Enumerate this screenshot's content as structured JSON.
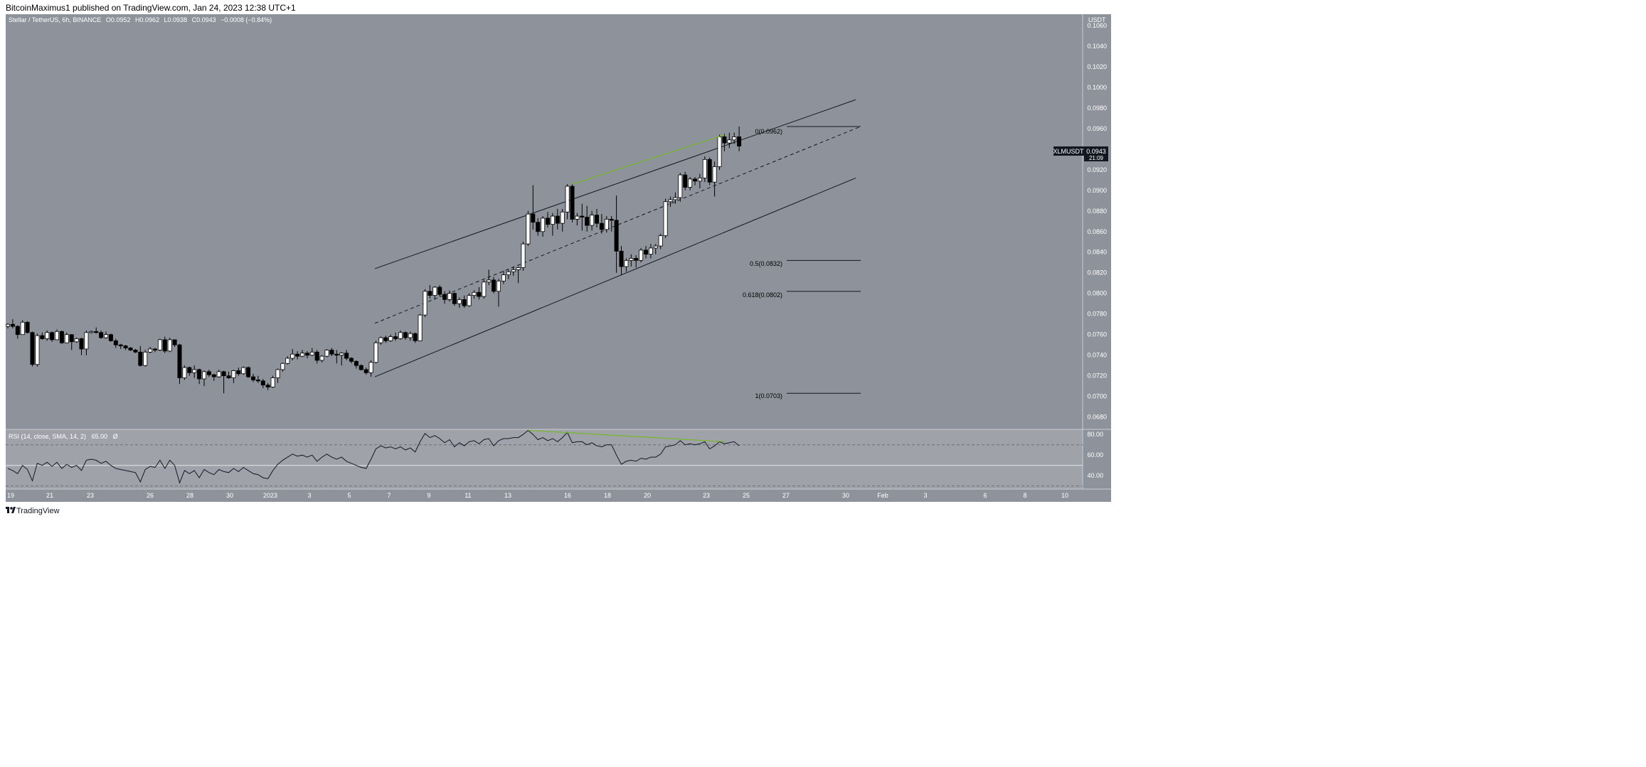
{
  "header": {
    "published": "BitcoinMaximus1 published on TradingView.com, Jan 24, 2023 12:38 UTC+1",
    "symbol_line": "Stellar / TetherUS, 6h, BINANCE",
    "o_label": "O",
    "o_value": "0.0952",
    "h_label": "H",
    "h_value": "0.0962",
    "l_label": "L",
    "l_value": "0.0938",
    "c_label": "C",
    "c_value": "0.0943",
    "change": "−0.0008 (−0.84%)"
  },
  "price_axis": {
    "unit": "USDT",
    "ticks": [
      "0.1060",
      "0.1040",
      "0.1020",
      "0.1000",
      "0.0980",
      "0.0960",
      "0.0940",
      "0.0920",
      "0.0900",
      "0.0880",
      "0.0860",
      "0.0840",
      "0.0820",
      "0.0800",
      "0.0780",
      "0.0760",
      "0.0740",
      "0.0720",
      "0.0700",
      "0.0680"
    ]
  },
  "ticker_badge": {
    "symbol": "XLMUSDT",
    "price": "0.0943",
    "countdown": "21:09"
  },
  "fib_labels": [
    "0(0.0962)",
    "0.5(0.0832)",
    "0.618(0.0802)",
    "1(0.0703)"
  ],
  "rsi": {
    "legend": "RSI (14, close, SMA, 14, 2)",
    "value": "65.00",
    "extra": "Ø",
    "axis_ticks": [
      "80.00",
      "60.00",
      "40.00"
    ]
  },
  "time_axis": {
    "labels": [
      "19",
      "21",
      "23",
      "26",
      "28",
      "30",
      "2023",
      "3",
      "5",
      "7",
      "9",
      "11",
      "13",
      "16",
      "18",
      "20",
      "23",
      "25",
      "27",
      "30",
      "Feb",
      "3",
      "6",
      "8",
      "10"
    ]
  },
  "footer": {
    "brand": "TradingView"
  },
  "colors": {
    "chart_bg": "#8e939b",
    "rsi_bg": "#9fa2a8",
    "bull": "#ffffff",
    "bear": "#000000",
    "divergence": "#76b82a"
  },
  "chart_data": {
    "type": "candlestick",
    "symbol": "XLMUSDT",
    "interval": "6h",
    "price_range": [
      0.0668,
      0.1071
    ],
    "candles": [
      [
        0.0768,
        0.0771,
        0.0766,
        0.077
      ],
      [
        0.077,
        0.0775,
        0.0766,
        0.0768
      ],
      [
        0.0768,
        0.0769,
        0.0756,
        0.076
      ],
      [
        0.076,
        0.0774,
        0.076,
        0.0772
      ],
      [
        0.0772,
        0.0773,
        0.0761,
        0.0762
      ],
      [
        0.0762,
        0.0763,
        0.0729,
        0.0731
      ],
      [
        0.0731,
        0.0761,
        0.0729,
        0.0759
      ],
      [
        0.0759,
        0.0762,
        0.0755,
        0.0756
      ],
      [
        0.0756,
        0.0764,
        0.0754,
        0.0762
      ],
      [
        0.0762,
        0.0763,
        0.0753,
        0.0755
      ],
      [
        0.0755,
        0.0765,
        0.0755,
        0.0763
      ],
      [
        0.0763,
        0.0764,
        0.0751,
        0.0752
      ],
      [
        0.0752,
        0.0762,
        0.0752,
        0.076
      ],
      [
        0.076,
        0.076,
        0.0745,
        0.0753
      ],
      [
        0.0753,
        0.0757,
        0.0752,
        0.0756
      ],
      [
        0.0756,
        0.0757,
        0.074,
        0.0746
      ],
      [
        0.0746,
        0.0764,
        0.074,
        0.0762
      ],
      [
        0.0762,
        0.0764,
        0.0761,
        0.0763
      ],
      [
        0.0763,
        0.0767,
        0.0761,
        0.0762
      ],
      [
        0.0762,
        0.0764,
        0.0756,
        0.0757
      ],
      [
        0.0757,
        0.0763,
        0.0756,
        0.076
      ],
      [
        0.076,
        0.0761,
        0.0753,
        0.0754
      ],
      [
        0.0754,
        0.0756,
        0.0747,
        0.075
      ],
      [
        0.075,
        0.0751,
        0.0746,
        0.0749
      ],
      [
        0.0749,
        0.075,
        0.0745,
        0.0747
      ],
      [
        0.0747,
        0.0748,
        0.0744,
        0.0745
      ],
      [
        0.0745,
        0.0746,
        0.0742,
        0.0743
      ],
      [
        0.0743,
        0.0749,
        0.0729,
        0.073
      ],
      [
        0.073,
        0.0745,
        0.0729,
        0.0743
      ],
      [
        0.0743,
        0.0748,
        0.0742,
        0.0746
      ],
      [
        0.0746,
        0.0747,
        0.0743,
        0.0745
      ],
      [
        0.0745,
        0.0756,
        0.0744,
        0.0755
      ],
      [
        0.0755,
        0.0758,
        0.0742,
        0.0744
      ],
      [
        0.0744,
        0.0757,
        0.0743,
        0.0755
      ],
      [
        0.0755,
        0.0755,
        0.0748,
        0.075
      ],
      [
        0.075,
        0.0751,
        0.0712,
        0.0718
      ],
      [
        0.0718,
        0.073,
        0.0716,
        0.0728
      ],
      [
        0.0728,
        0.0729,
        0.072,
        0.0723
      ],
      [
        0.0723,
        0.073,
        0.0718,
        0.0726
      ],
      [
        0.0726,
        0.0727,
        0.0712,
        0.0717
      ],
      [
        0.0717,
        0.0725,
        0.071,
        0.0724
      ],
      [
        0.0724,
        0.0726,
        0.0719,
        0.0721
      ],
      [
        0.0721,
        0.0722,
        0.0715,
        0.0719
      ],
      [
        0.0719,
        0.0726,
        0.0718,
        0.0724
      ],
      [
        0.0724,
        0.0725,
        0.0703,
        0.072
      ],
      [
        0.072,
        0.0724,
        0.0717,
        0.0718
      ],
      [
        0.0718,
        0.0726,
        0.0713,
        0.0725
      ],
      [
        0.0725,
        0.0728,
        0.072,
        0.0722
      ],
      [
        0.0722,
        0.0729,
        0.0721,
        0.0728
      ],
      [
        0.0728,
        0.0729,
        0.0718,
        0.0719
      ],
      [
        0.0719,
        0.0722,
        0.0714,
        0.0716
      ],
      [
        0.0716,
        0.072,
        0.0713,
        0.0715
      ],
      [
        0.0715,
        0.0717,
        0.0708,
        0.0711
      ],
      [
        0.0711,
        0.0713,
        0.0706,
        0.0709
      ],
      [
        0.0709,
        0.072,
        0.0708,
        0.0718
      ],
      [
        0.0718,
        0.0727,
        0.0713,
        0.0726
      ],
      [
        0.0726,
        0.0733,
        0.0724,
        0.0732
      ],
      [
        0.0732,
        0.0739,
        0.0731,
        0.0737
      ],
      [
        0.0737,
        0.0746,
        0.0735,
        0.0741
      ],
      [
        0.0741,
        0.0744,
        0.0736,
        0.0739
      ],
      [
        0.0739,
        0.0745,
        0.0738,
        0.0742
      ],
      [
        0.0742,
        0.0744,
        0.0737,
        0.074
      ],
      [
        0.074,
        0.0747,
        0.0739,
        0.0743
      ],
      [
        0.0743,
        0.0745,
        0.0732,
        0.0735
      ],
      [
        0.0735,
        0.074,
        0.0733,
        0.0739
      ],
      [
        0.0739,
        0.0746,
        0.0738,
        0.0745
      ],
      [
        0.0745,
        0.0747,
        0.0739,
        0.0741
      ],
      [
        0.0741,
        0.0745,
        0.0732,
        0.074
      ],
      [
        0.074,
        0.0743,
        0.073,
        0.0742
      ],
      [
        0.0742,
        0.0745,
        0.0735,
        0.0737
      ],
      [
        0.0737,
        0.0738,
        0.0732,
        0.0734
      ],
      [
        0.0734,
        0.0735,
        0.0727,
        0.073
      ],
      [
        0.073,
        0.0731,
        0.0725,
        0.0726
      ],
      [
        0.0726,
        0.0728,
        0.0721,
        0.0723
      ],
      [
        0.0723,
        0.0735,
        0.0719,
        0.0733
      ],
      [
        0.0733,
        0.0754,
        0.0732,
        0.0752
      ],
      [
        0.0752,
        0.0758,
        0.075,
        0.0757
      ],
      [
        0.0757,
        0.0759,
        0.0752,
        0.0754
      ],
      [
        0.0754,
        0.076,
        0.0753,
        0.0758
      ],
      [
        0.0758,
        0.0762,
        0.0754,
        0.0756
      ],
      [
        0.0756,
        0.0764,
        0.0755,
        0.0762
      ],
      [
        0.0762,
        0.0763,
        0.0755,
        0.0757
      ],
      [
        0.0757,
        0.0763,
        0.0754,
        0.0761
      ],
      [
        0.0761,
        0.0762,
        0.0752,
        0.0754
      ],
      [
        0.0754,
        0.078,
        0.0754,
        0.0779
      ],
      [
        0.0779,
        0.0804,
        0.0777,
        0.0802
      ],
      [
        0.0802,
        0.0808,
        0.0795,
        0.0798
      ],
      [
        0.0798,
        0.0807,
        0.0794,
        0.0806
      ],
      [
        0.0806,
        0.0808,
        0.0797,
        0.0799
      ],
      [
        0.0799,
        0.0802,
        0.079,
        0.0794
      ],
      [
        0.0794,
        0.0803,
        0.0792,
        0.08
      ],
      [
        0.08,
        0.0801,
        0.0788,
        0.079
      ],
      [
        0.079,
        0.0796,
        0.0786,
        0.0794
      ],
      [
        0.0794,
        0.0798,
        0.0786,
        0.0788
      ],
      [
        0.0788,
        0.08,
        0.0787,
        0.0798
      ],
      [
        0.0798,
        0.0803,
        0.0795,
        0.0801
      ],
      [
        0.0801,
        0.0806,
        0.0794,
        0.0797
      ],
      [
        0.0797,
        0.0813,
        0.0795,
        0.0811
      ],
      [
        0.0811,
        0.0823,
        0.0808,
        0.0813
      ],
      [
        0.0813,
        0.0816,
        0.08,
        0.0802
      ],
      [
        0.0802,
        0.0814,
        0.0787,
        0.0812
      ],
      [
        0.0812,
        0.0822,
        0.0809,
        0.0818
      ],
      [
        0.0818,
        0.0823,
        0.0814,
        0.0821
      ],
      [
        0.0821,
        0.0826,
        0.0817,
        0.0823
      ],
      [
        0.0823,
        0.0826,
        0.081,
        0.0825
      ],
      [
        0.0825,
        0.085,
        0.0822,
        0.0848
      ],
      [
        0.0848,
        0.088,
        0.0846,
        0.0877
      ],
      [
        0.0877,
        0.0905,
        0.0862,
        0.0869
      ],
      [
        0.0869,
        0.0873,
        0.0856,
        0.086
      ],
      [
        0.086,
        0.0875,
        0.0855,
        0.0873
      ],
      [
        0.0873,
        0.0879,
        0.0864,
        0.0867
      ],
      [
        0.0867,
        0.0878,
        0.0856,
        0.0875
      ],
      [
        0.0875,
        0.0882,
        0.0862,
        0.0868
      ],
      [
        0.0868,
        0.0882,
        0.086,
        0.0879
      ],
      [
        0.0879,
        0.0906,
        0.0872,
        0.0904
      ],
      [
        0.0904,
        0.0906,
        0.0869,
        0.0872
      ],
      [
        0.0872,
        0.0878,
        0.0866,
        0.0875
      ],
      [
        0.0875,
        0.0887,
        0.0861,
        0.0874
      ],
      [
        0.0874,
        0.0885,
        0.086,
        0.0866
      ],
      [
        0.0866,
        0.088,
        0.0861,
        0.0876
      ],
      [
        0.0876,
        0.0882,
        0.0864,
        0.0868
      ],
      [
        0.0868,
        0.0877,
        0.0858,
        0.0862
      ],
      [
        0.0862,
        0.0875,
        0.0859,
        0.0872
      ],
      [
        0.0872,
        0.0875,
        0.086,
        0.0871
      ],
      [
        0.0871,
        0.0895,
        0.082,
        0.0841
      ],
      [
        0.0841,
        0.0846,
        0.0818,
        0.0826
      ],
      [
        0.0826,
        0.0834,
        0.0821,
        0.0832
      ],
      [
        0.0832,
        0.0838,
        0.0826,
        0.0834
      ],
      [
        0.0834,
        0.0837,
        0.0825,
        0.0832
      ],
      [
        0.0832,
        0.0844,
        0.083,
        0.0842
      ],
      [
        0.0842,
        0.0846,
        0.0834,
        0.0838
      ],
      [
        0.0838,
        0.0848,
        0.0834,
        0.0844
      ],
      [
        0.0844,
        0.0848,
        0.0838,
        0.0846
      ],
      [
        0.0846,
        0.0858,
        0.0843,
        0.0856
      ],
      [
        0.0856,
        0.0892,
        0.0854,
        0.0889
      ],
      [
        0.0889,
        0.0894,
        0.0884,
        0.0891
      ],
      [
        0.0891,
        0.0898,
        0.0887,
        0.0893
      ],
      [
        0.0893,
        0.0917,
        0.0889,
        0.0915
      ],
      [
        0.0915,
        0.0918,
        0.09,
        0.0903
      ],
      [
        0.0903,
        0.0913,
        0.09,
        0.0911
      ],
      [
        0.0911,
        0.0913,
        0.0905,
        0.0909
      ],
      [
        0.0909,
        0.0916,
        0.0902,
        0.0912
      ],
      [
        0.0912,
        0.0933,
        0.0908,
        0.093
      ],
      [
        0.093,
        0.0932,
        0.0905,
        0.0908
      ],
      [
        0.0908,
        0.0928,
        0.0894,
        0.0923
      ],
      [
        0.0923,
        0.0954,
        0.092,
        0.0952
      ],
      [
        0.0952,
        0.0955,
        0.0938,
        0.0946
      ],
      [
        0.0946,
        0.0956,
        0.0941,
        0.0949
      ],
      [
        0.0949,
        0.0956,
        0.0945,
        0.0952
      ],
      [
        0.0952,
        0.0962,
        0.0938,
        0.0943
      ]
    ],
    "rsi_range": [
      27,
      85
    ],
    "rsi_values": [
      47,
      45,
      42,
      50,
      46,
      35,
      52,
      50,
      53,
      49,
      53,
      47,
      51,
      48,
      50,
      45,
      55,
      56,
      55,
      52,
      54,
      50,
      47,
      46,
      45,
      44,
      43,
      34,
      46,
      49,
      48,
      55,
      47,
      55,
      50,
      33,
      45,
      42,
      45,
      38,
      46,
      43,
      41,
      46,
      44,
      43,
      47,
      44,
      48,
      45,
      42,
      41,
      38,
      37,
      45,
      51,
      55,
      58,
      61,
      59,
      60,
      58,
      60,
      54,
      58,
      61,
      58,
      56,
      58,
      54,
      52,
      50,
      48,
      47,
      56,
      66,
      69,
      67,
      68,
      66,
      68,
      65,
      67,
      63,
      73,
      81,
      77,
      79,
      76,
      72,
      75,
      68,
      72,
      69,
      73,
      74,
      71,
      75,
      76,
      69,
      74,
      76,
      76,
      77,
      77,
      80,
      84,
      80,
      75,
      77,
      74,
      76,
      73,
      77,
      82,
      72,
      73,
      73,
      70,
      72,
      69,
      68,
      70,
      70,
      60,
      51,
      54,
      55,
      54,
      57,
      56,
      58,
      58,
      61,
      68,
      69,
      70,
      74,
      70,
      71,
      70,
      71,
      73,
      66,
      69,
      73,
      71,
      72,
      73,
      69
    ],
    "rsi_levels": {
      "upper": 70,
      "middle": 50,
      "lower": 30
    },
    "channel": {
      "upper": [
        [
          0.0824,
          0.0988
        ]
      ],
      "middle": [
        [
          0.0771,
          0.0962
        ]
      ],
      "lower": [
        [
          0.0719,
          0.0912
        ]
      ]
    },
    "fib_levels": [
      {
        "ratio": "0",
        "price": 0.0962
      },
      {
        "ratio": "0.5",
        "price": 0.0832
      },
      {
        "ratio": "0.618",
        "price": 0.0802
      },
      {
        "ratio": "1",
        "price": 0.0703
      }
    ],
    "current_price": 0.0943
  }
}
